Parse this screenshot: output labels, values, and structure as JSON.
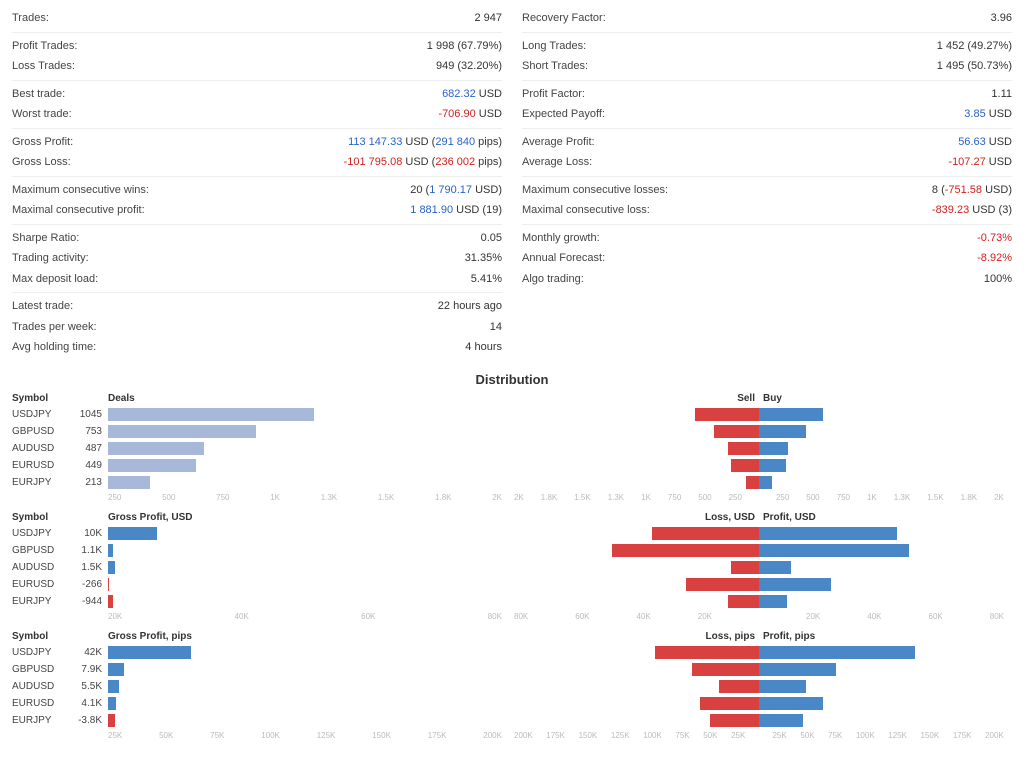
{
  "colors": {
    "blue": "#4a87c7",
    "lightblue": "#a8b8d8",
    "red": "#d94040",
    "grid": "#e8e8e8"
  },
  "left_stats": [
    [
      {
        "label": "Trades:",
        "val": "2 947"
      }
    ],
    [
      {
        "label": "Profit Trades:",
        "val": "1 998 (67.79%)"
      },
      {
        "label": "Loss Trades:",
        "val": "949 (32.20%)"
      }
    ],
    [
      {
        "label": "Best trade:",
        "html": "<span class='blue'>682.32</span> USD"
      },
      {
        "label": "Worst trade:",
        "html": "<span class='red'>-706.90</span> USD"
      }
    ],
    [
      {
        "label": "Gross Profit:",
        "html": "<span class='blue'>113 147.33</span> USD (<span class='blue'>291 840</span> pips)"
      },
      {
        "label": "Gross Loss:",
        "html": "<span class='red'>-101 795.08</span> USD (<span class='red'>236 002</span> pips)"
      }
    ],
    [
      {
        "label": "Maximum consecutive wins:",
        "html": "20 (<span class='blue'>1 790.17</span> USD)"
      },
      {
        "label": "Maximal consecutive profit:",
        "html": "<span class='blue'>1 881.90</span> USD (19)"
      }
    ],
    [
      {
        "label": "Sharpe Ratio:",
        "val": "0.05"
      },
      {
        "label": "Trading activity:",
        "val": "31.35%"
      },
      {
        "label": "Max deposit load:",
        "val": "5.41%"
      }
    ],
    [
      {
        "label": "Latest trade:",
        "val": "22 hours ago"
      },
      {
        "label": "Trades per week:",
        "val": "14"
      },
      {
        "label": "Avg holding time:",
        "val": "4 hours"
      }
    ]
  ],
  "right_stats": [
    [
      {
        "label": "Recovery Factor:",
        "val": "3.96"
      }
    ],
    [
      {
        "label": "Long Trades:",
        "val": "1 452 (49.27%)"
      },
      {
        "label": "Short Trades:",
        "val": "1 495 (50.73%)"
      }
    ],
    [
      {
        "label": "Profit Factor:",
        "val": "1.11"
      },
      {
        "label": "Expected Payoff:",
        "html": "<span class='blue'>3.85</span> USD"
      }
    ],
    [
      {
        "label": "Average Profit:",
        "html": "<span class='blue'>56.63</span> USD"
      },
      {
        "label": "Average Loss:",
        "html": "<span class='red'>-107.27</span> USD"
      }
    ],
    [
      {
        "label": "Maximum consecutive losses:",
        "html": "8 (<span class='red'>-751.58</span> USD)"
      },
      {
        "label": "Maximal consecutive loss:",
        "html": "<span class='red'>-839.23</span> USD (3)"
      }
    ],
    [
      {
        "label": "Monthly growth:",
        "html": "<span class='red'>-0.73%</span>"
      },
      {
        "label": "Annual Forecast:",
        "html": "<span class='red'>-8.92%</span>"
      },
      {
        "label": "Algo trading:",
        "val": "100%"
      }
    ]
  ],
  "dist_title": "Distribution",
  "symbols": [
    "USDJPY",
    "GBPUSD",
    "AUDUSD",
    "EURUSD",
    "EURJPY"
  ],
  "deals": {
    "header": "Deals",
    "values": [
      1045,
      753,
      487,
      449,
      213
    ],
    "labels": [
      "1045",
      "753",
      "487",
      "449",
      "213"
    ],
    "max": 2000,
    "color": "#a8b8d8",
    "axis": [
      "250",
      "500",
      "750",
      "1K",
      "1.3K",
      "1.5K",
      "1.8K",
      "2K"
    ]
  },
  "sellbuy": {
    "header_l": "Sell",
    "header_r": "Buy",
    "sell": [
      520,
      370,
      250,
      230,
      110
    ],
    "buy": [
      525,
      383,
      237,
      219,
      103
    ],
    "max": 2000,
    "axis": [
      "2K",
      "1.8K",
      "1.5K",
      "1.3K",
      "1K",
      "750",
      "500",
      "250",
      "",
      "250",
      "500",
      "750",
      "1K",
      "1.3K",
      "1.5K",
      "1.8K",
      "2K"
    ]
  },
  "gpusd": {
    "header": "Gross Profit, USD",
    "values": [
      10000,
      1100,
      1500,
      -266,
      -944
    ],
    "labels": [
      "10K",
      "1.1K",
      "1.5K",
      "-266",
      "-944"
    ],
    "max": 80000,
    "axis": [
      "20K",
      "40K",
      "60K",
      "80K"
    ]
  },
  "lpusd": {
    "header_l": "Loss, USD",
    "header_r": "Profit, USD",
    "loss": [
      35000,
      48000,
      9000,
      24000,
      10000
    ],
    "profit": [
      45000,
      49000,
      10500,
      23500,
      9000
    ],
    "max": 80000,
    "axis": [
      "80K",
      "60K",
      "40K",
      "20K",
      "",
      "20K",
      "40K",
      "60K",
      "80K"
    ]
  },
  "gppips": {
    "header": "Gross Profit, pips",
    "values": [
      42000,
      7900,
      5500,
      4100,
      -3800
    ],
    "labels": [
      "42K",
      "7.9K",
      "5.5K",
      "4.1K",
      "-3.8K"
    ],
    "max": 200000,
    "axis": [
      "25K",
      "50K",
      "75K",
      "100K",
      "125K",
      "150K",
      "175K",
      "200K"
    ]
  },
  "lppips": {
    "header_l": "Loss, pips",
    "header_r": "Profit, pips",
    "loss": [
      85000,
      55000,
      33000,
      48000,
      40000
    ],
    "profit": [
      127000,
      63000,
      38500,
      52000,
      36000
    ],
    "max": 200000,
    "axis": [
      "200K",
      "175K",
      "150K",
      "125K",
      "100K",
      "75K",
      "50K",
      "25K",
      "",
      "25K",
      "50K",
      "75K",
      "100K",
      "125K",
      "150K",
      "175K",
      "200K"
    ]
  }
}
